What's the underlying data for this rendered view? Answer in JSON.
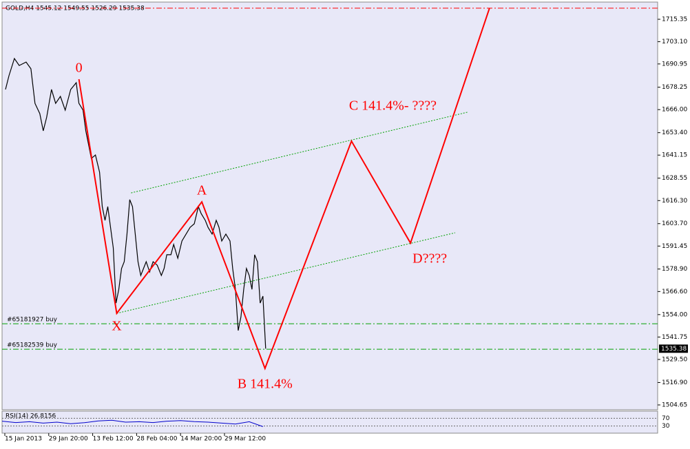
{
  "chart_data": {
    "type": "line",
    "header": "GOLD,H4  1545.12 1549.55 1526.29 1535.38",
    "ylim": [
      1502.02,
      1724.38
    ],
    "yticks": [
      1715.35,
      {
        "value": 1703.1,
        "label": "1703.10"
      },
      1690.95,
      1678.25,
      {
        "value": 1666,
        "label": "1666.00"
      },
      {
        "value": 1653.4,
        "label": "1653.40"
      },
      1641.15,
      1628.55,
      {
        "value": 1616.3,
        "label": "1616.30"
      },
      {
        "value": 1603.7,
        "label": "1603.70"
      },
      1591.45,
      {
        "value": 1578.9,
        "label": "1578.90"
      },
      {
        "value": 1566.6,
        "label": "1566.60"
      },
      {
        "value": 1554,
        "label": "1554.00"
      },
      1541.75,
      {
        "value": 1529.5,
        "label": "1529.50"
      },
      {
        "value": 1516.9,
        "label": "1516.90"
      },
      1504.65
    ],
    "xlim": [
      0,
      477.5
    ],
    "xticks": [
      {
        "value": 2,
        "label": "15 Jan 2013"
      },
      {
        "value": 34,
        "label": "29 Jan 20:00"
      },
      {
        "value": 66,
        "label": "13 Feb 12:00"
      },
      {
        "value": 98,
        "label": "28 Feb 04:00"
      },
      {
        "value": 130,
        "label": "14 Mar 20:00"
      },
      {
        "value": 162,
        "label": "29 Mar 12:00"
      }
    ],
    "price": {
      "color": "#000000",
      "x": [
        2.5,
        5,
        9,
        12.5,
        17.5,
        21,
        24,
        27.5,
        30,
        32.5,
        36,
        39,
        42.5,
        46,
        50,
        54,
        56,
        59,
        61,
        63,
        65,
        68,
        71,
        73,
        75,
        77,
        79,
        81,
        83,
        85,
        87,
        89,
        91,
        93,
        95,
        97,
        99,
        101,
        103,
        105,
        107.5,
        110,
        113,
        116,
        118,
        120,
        123,
        125,
        128,
        131,
        134,
        137,
        140,
        143,
        145,
        148,
        150,
        153,
        156,
        158,
        160,
        163,
        166,
        168,
        170,
        172,
        174,
        176,
        178,
        180,
        182,
        184,
        186,
        188,
        190,
        192
      ],
      "values": [
        1677.0,
        1684.5,
        1693.9,
        1690.1,
        1692.0,
        1688.3,
        1669.4,
        1663.8,
        1654.4,
        1661.9,
        1677.0,
        1669.4,
        1673.2,
        1665.7,
        1677.0,
        1680.7,
        1669.4,
        1665.7,
        1654.4,
        1646.9,
        1639.3,
        1641.2,
        1631.8,
        1613.0,
        1605.5,
        1613.0,
        1601.7,
        1590.4,
        1560.3,
        1567.8,
        1579.2,
        1582.9,
        1598.0,
        1616.8,
        1613.0,
        1598.0,
        1582.9,
        1575.4,
        1579.2,
        1582.9,
        1577.3,
        1582.9,
        1581.0,
        1575.4,
        1579.2,
        1586.7,
        1586.7,
        1592.3,
        1584.8,
        1594.2,
        1598.0,
        1601.7,
        1603.6,
        1613.0,
        1609.2,
        1605.5,
        1601.7,
        1598.0,
        1605.5,
        1601.7,
        1594.2,
        1598.0,
        1594.2,
        1579.2,
        1567.8,
        1545.3,
        1552.8,
        1567.8,
        1579.2,
        1575.4,
        1567.8,
        1586.7,
        1582.9,
        1560.3,
        1564.1,
        1535.38
      ]
    },
    "pattern": {
      "color": "#ff0000",
      "x": [
        56,
        83.5,
        145.5,
        191.5,
        254.5,
        297.5,
        355
      ],
      "values": [
        1682.6,
        1554.7,
        1615.6,
        1524.6,
        1648.8,
        1593.1,
        1721.4
      ],
      "labels": [
        "0",
        "X",
        "A",
        "B 141.4%",
        "C 141.4%- ????",
        "D????",
        null
      ]
    },
    "channel": {
      "color": "#00a000",
      "upper": {
        "x": [
          94,
          339
        ],
        "values": [
          1620.5,
          1664.6
        ]
      },
      "lower": {
        "x": [
          83.5,
          330
        ],
        "values": [
          1554.7,
          1598.7
        ]
      }
    },
    "target_level": 1721.4,
    "orders": [
      {
        "label": "#65181927 buy",
        "value": 1549.0
      },
      {
        "label": "#65182539 buy",
        "value": 1535.1
      }
    ],
    "last_price": 1535.38,
    "rsi": {
      "label": "RSI(14) 26.8156",
      "color": "#0000cc",
      "ylim": [
        0,
        100
      ],
      "yticks": [
        30,
        70
      ],
      "x": [
        0,
        10,
        20,
        30,
        40,
        50,
        60,
        70,
        80,
        90,
        100,
        110,
        120,
        130,
        140,
        150,
        160,
        170,
        180,
        190
      ],
      "values": [
        55,
        48,
        52,
        45,
        50,
        42,
        47,
        56,
        60,
        50,
        52,
        48,
        55,
        58,
        53,
        50,
        45,
        40,
        52,
        26.8156
      ]
    }
  }
}
